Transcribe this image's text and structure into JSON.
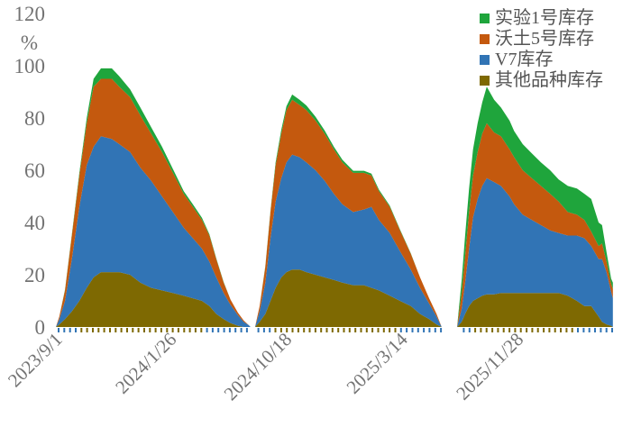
{
  "chart_data": {
    "type": "area",
    "stacked": true,
    "unit_label": "%",
    "ylim": [
      0,
      120
    ],
    "yticks": [
      0,
      20,
      40,
      60,
      80,
      100,
      120
    ],
    "grid": false,
    "legend_position": "top-right",
    "colors": {
      "background": "#ffffff",
      "axis_text": "#737373",
      "legend_text": "#555555"
    },
    "legend": [
      {
        "label": "实验1号库存",
        "color": "#1FA53C"
      },
      {
        "label": "沃土5号库存",
        "color": "#C4590E"
      },
      {
        "label": "V7库存",
        "color": "#3174B5"
      },
      {
        "label": "其他品种库存",
        "color": "#7E6902"
      }
    ],
    "xtick_labels": [
      {
        "label": "2023/9/1",
        "pos": 0.013
      },
      {
        "label": "2024/1/26",
        "pos": 0.213
      },
      {
        "label": "2024/10/18",
        "pos": 0.415
      },
      {
        "label": "2025/3/14",
        "pos": 0.618
      },
      {
        "label": "2025/11/28",
        "pos": 0.821
      }
    ],
    "x": [
      0.0,
      0.006,
      0.016,
      0.028,
      0.041,
      0.054,
      0.066,
      0.079,
      0.098,
      0.111,
      0.13,
      0.148,
      0.167,
      0.186,
      0.205,
      0.224,
      0.24,
      0.256,
      0.269,
      0.281,
      0.294,
      0.306,
      0.319,
      0.329,
      0.338,
      0.341,
      0.349,
      0.357,
      0.367,
      0.376,
      0.385,
      0.395,
      0.404,
      0.414,
      0.427,
      0.439,
      0.455,
      0.471,
      0.487,
      0.502,
      0.521,
      0.54,
      0.553,
      0.566,
      0.585,
      0.603,
      0.622,
      0.638,
      0.654,
      0.667,
      0.676,
      0.703,
      0.711,
      0.717,
      0.724,
      0.731,
      0.739,
      0.747,
      0.755,
      0.768,
      0.78,
      0.795,
      0.803,
      0.818,
      0.834,
      0.85,
      0.866,
      0.881,
      0.897,
      0.913,
      0.926,
      0.938,
      0.951,
      0.957,
      0.965,
      0.973,
      0.976
    ],
    "series": [
      {
        "name": "其他品种库存",
        "color": "#7E6902",
        "values": [
          0,
          1,
          3,
          6,
          10,
          15,
          19,
          21,
          21,
          21,
          20,
          17,
          15,
          14,
          13,
          12,
          11,
          10,
          8,
          5,
          3,
          1.5,
          0.5,
          0,
          0,
          0,
          0,
          2,
          5,
          10,
          15,
          19,
          21,
          22,
          22,
          21,
          20,
          19,
          18,
          17,
          16,
          16,
          15,
          14,
          12,
          10,
          8,
          5,
          3,
          1,
          0,
          0,
          2,
          5,
          8,
          10,
          11,
          12,
          12.5,
          12.5,
          13,
          13,
          13,
          13,
          13,
          13,
          13,
          13,
          12,
          10,
          8,
          8,
          4,
          2,
          1,
          0.5,
          0
        ]
      },
      {
        "name": "V7库存",
        "color": "#3174B5",
        "values": [
          0,
          2,
          7,
          20,
          36,
          47,
          50,
          52,
          51,
          49,
          47,
          44,
          41,
          36,
          31,
          26,
          23,
          20,
          17,
          14,
          10,
          7,
          4,
          2,
          0.7,
          0,
          0,
          4,
          12,
          24,
          33,
          38,
          42,
          44,
          43,
          42,
          40,
          37,
          33,
          30,
          28,
          29,
          31,
          27,
          24,
          19,
          14,
          10,
          6,
          3,
          0,
          0,
          5,
          12,
          22,
          32,
          38,
          42,
          44.5,
          43,
          41,
          37,
          34,
          30,
          28,
          26,
          24,
          23,
          23,
          25,
          26,
          23,
          22,
          24,
          20,
          13,
          11
        ]
      },
      {
        "name": "沃土5号库存",
        "color": "#C4590E",
        "values": [
          0,
          1,
          4,
          9,
          12,
          16,
          23,
          22,
          23,
          22,
          21,
          20,
          18,
          17,
          15,
          13,
          12,
          11,
          10,
          7,
          4,
          2,
          1,
          0.5,
          0,
          0,
          0,
          2,
          6,
          10,
          14,
          17,
          20,
          21,
          20,
          20,
          19,
          18,
          17,
          16,
          15,
          14,
          12,
          11,
          10,
          8,
          6,
          4,
          2,
          1,
          0,
          0,
          6,
          10,
          14,
          16,
          18,
          20,
          21,
          19,
          19,
          18,
          18,
          17,
          16,
          15,
          14,
          12,
          9,
          8,
          7,
          5.5,
          5,
          6,
          4,
          3,
          3.5
        ]
      },
      {
        "name": "实验1号库存",
        "color": "#1FA53C",
        "values": [
          0,
          0,
          0.3,
          0.5,
          1,
          2,
          3,
          4,
          4,
          4,
          3,
          3,
          2.5,
          2,
          1.5,
          1,
          1,
          0.8,
          0.5,
          0.3,
          0.2,
          0,
          0,
          0,
          0,
          0,
          0,
          0,
          0.3,
          0.5,
          1,
          1.5,
          1.5,
          2,
          2,
          1.8,
          1.5,
          1.2,
          1,
          1,
          0.8,
          0.8,
          0.7,
          0.6,
          0.5,
          0.3,
          0.2,
          0,
          0,
          0,
          0,
          0,
          5,
          8,
          9,
          10,
          11,
          12,
          14,
          12.5,
          11,
          11,
          10,
          10,
          9.5,
          9,
          9,
          8.5,
          10,
          10,
          10,
          12.5,
          9,
          7,
          3.6,
          2,
          2.5
        ]
      }
    ]
  }
}
